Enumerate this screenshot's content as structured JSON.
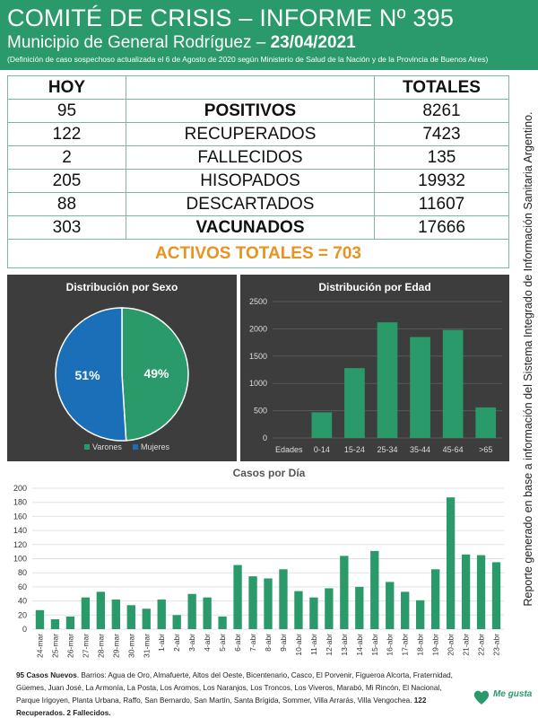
{
  "header": {
    "title": "COMITÉ DE CRISIS – INFORME Nº 395",
    "subtitle": "Municipio de General Rodríguez – ",
    "date": "23/04/2021",
    "note": "(Definición de caso sospechoso actualizada el 6 de Agosto de 2020 según Ministerio de Salud de la Nación y de la Provincia de Buenos Aires)"
  },
  "stats": {
    "hoy_label": "HOY",
    "totales_label": "TOTALES",
    "rows": [
      {
        "hoy": "95",
        "label": "POSITIVOS",
        "total": "8261"
      },
      {
        "hoy": "122",
        "label": "RECUPERADOS",
        "total": "7423"
      },
      {
        "hoy": "2",
        "label": "FALLECIDOS",
        "total": "135"
      },
      {
        "hoy": "205",
        "label": "HISOPADOS",
        "total": "19932"
      },
      {
        "hoy": "88",
        "label": "DESCARTADOS",
        "total": "11607"
      },
      {
        "hoy": "303",
        "label": "VACUNADOS",
        "total": "17666"
      }
    ],
    "activos": "ACTIVOS TOTALES = 703"
  },
  "side_note": "Reporte generado en base a información del Sistema Integrado de Información Sanitaria Argentino.",
  "colors": {
    "green": "#2a9a6a",
    "blue": "#1a6fb8",
    "orange": "#e8931f",
    "panel": "#3d3d3d"
  },
  "chart_data": [
    {
      "type": "pie",
      "title": "Distribución por Sexo",
      "labels": [
        "Varones",
        "Mujeres"
      ],
      "values": [
        49,
        51
      ],
      "value_labels": [
        "49%",
        "51%"
      ],
      "legend": "bottom"
    },
    {
      "type": "bar",
      "title": "Distribución por Edad",
      "categories": [
        "Edades",
        "0-14",
        "15-24",
        "25-34",
        "35-44",
        "45-64",
        ">65"
      ],
      "values": [
        0,
        470,
        1280,
        2120,
        1850,
        1980,
        560
      ],
      "ylim": [
        0,
        2500
      ],
      "yticks": [
        "0",
        "500",
        "1000",
        "1500",
        "2000",
        "2500"
      ],
      "grid": true
    },
    {
      "type": "bar",
      "title": "Casos por Día",
      "categories": [
        "24-mar",
        "25-mar",
        "26-mar",
        "27-mar",
        "28-mar",
        "29-mar",
        "30-mar",
        "31-mar",
        "1-abr",
        "2-abr",
        "3-abr",
        "4-abr",
        "5-abr",
        "6-abr",
        "7-abr",
        "8-abr",
        "9-abr",
        "10-abr",
        "11-abr",
        "12-abr",
        "13-abr",
        "14-abr",
        "15-abr",
        "16-abr",
        "17-abr",
        "18-abr",
        "19-abr",
        "20-abr",
        "21-abr",
        "22-abr",
        "23-abr"
      ],
      "values": [
        27,
        14,
        18,
        45,
        53,
        42,
        34,
        29,
        42,
        20,
        50,
        45,
        18,
        91,
        75,
        72,
        85,
        54,
        45,
        58,
        104,
        60,
        111,
        67,
        53,
        41,
        85,
        187,
        106,
        105,
        95
      ],
      "ylim": [
        0,
        200
      ],
      "yticks": [
        "0",
        "20",
        "40",
        "60",
        "80",
        "100",
        "120",
        "140",
        "160",
        "180",
        "200"
      ],
      "grid": true
    }
  ],
  "footer": {
    "nuevos_bold": "95 Casos Nuevos",
    "barrios": ". Barrios: Agua de Oro, Almafuerte, Altos del Oeste, Bicentenario, Casco, El Porvenir, Figueroa Alcorta, Fraternidad, Güemes, Juan José, La Armonía, La Posta, Los Aromos, Los Naranjos, Los Troncos, Los Viveros, Marabó, Mi Rincón, El Nacional, Parque Irigoyen, Planta Urbana, Raffo, San Bernardo, San Martín, Santa Brígida, Sommer, Villa Arrarás, Villa Vengochea. ",
    "recuperados_bold": "122 Recuperados. 2 Fallecidos."
  },
  "logo": {
    "text": "Me gusta"
  }
}
